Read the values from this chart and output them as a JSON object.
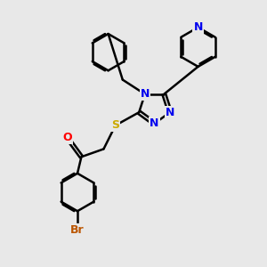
{
  "bg_color": "#e8e8e8",
  "bond_color": "#000000",
  "bond_width": 1.8,
  "atom_colors": {
    "N": "#0000ee",
    "O": "#ff0000",
    "S": "#ccaa00",
    "Br": "#bb5500",
    "C": "#000000"
  },
  "font_size_large": 9,
  "font_size_small": 8
}
